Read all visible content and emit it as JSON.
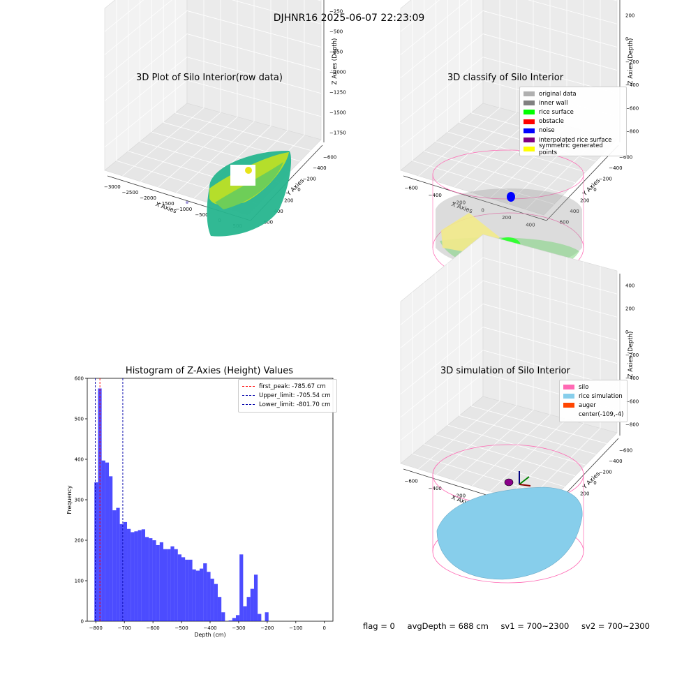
{
  "suptitle": "DJHNR16 2025-06-07 22:23:09",
  "panels": {
    "raw": {
      "title": "3D Plot of Silo Interior(row data)",
      "xlabel": "X Axies",
      "ylabel": "Y Axies",
      "zlabel": "Z Axies (Depth)",
      "xticks": [
        "−3000",
        "−2500",
        "−2000",
        "−1500",
        "−1000",
        "−500",
        "0",
        "500"
      ],
      "yticks": [
        "−600",
        "−400",
        "−200",
        "0",
        "200",
        "400",
        "600"
      ],
      "zticks": [
        "0",
        "−250",
        "−500",
        "−750",
        "−1000",
        "−1250",
        "−1500",
        "−1750"
      ]
    },
    "classify": {
      "title": "3D classify of Silo Interior",
      "xlabel": "X Axies",
      "ylabel": "Y Axies",
      "zlabel": "Z Axies (Depth)",
      "xticks": [
        "−600",
        "−400",
        "−200",
        "0",
        "200",
        "400"
      ],
      "yticks": [
        "−600",
        "−400",
        "−200",
        "0",
        "200",
        "400",
        "600"
      ],
      "zticks": [
        "400",
        "200",
        "0",
        "−200",
        "−400",
        "−600",
        "−800"
      ],
      "legend": [
        {
          "label": "original data",
          "color": "#b0b0b0"
        },
        {
          "label": "inner wall",
          "color": "#808080"
        },
        {
          "label": "rice surface",
          "color": "#00ff00"
        },
        {
          "label": "obstacle",
          "color": "#ff0000"
        },
        {
          "label": "noise",
          "color": "#0000ff"
        },
        {
          "label": "interpolated rice surface",
          "color": "#800080"
        },
        {
          "label": "symmetric generated points",
          "color": "#ffff00"
        }
      ]
    },
    "simulation": {
      "title": "3D simulation of Silo Interior",
      "xlabel": "X Axies",
      "ylabel": "Y Axies",
      "zlabel": "Z Axies (Depth)",
      "xticks": [
        "−600",
        "−400",
        "−200",
        "0",
        "200",
        "400"
      ],
      "yticks": [
        "−600",
        "−400",
        "−200",
        "0",
        "200",
        "400",
        "600"
      ],
      "zticks": [
        "400",
        "200",
        "0",
        "−200",
        "−400",
        "−600",
        "−800"
      ],
      "legend": [
        {
          "label": "silo",
          "color": "#ff69b4"
        },
        {
          "label": "rice simulation",
          "color": "#87ceeb"
        },
        {
          "label": "auger",
          "color": "#ff4500"
        },
        {
          "label": "center(-109,-4)",
          "color": ""
        }
      ]
    }
  },
  "chart_data": {
    "type": "bar",
    "title": "Histogram of Z-Axies (Height) Values",
    "xlabel": "Depth (cm)",
    "ylabel": "Frequency",
    "xlim": [
      -830,
      30
    ],
    "ylim": [
      0,
      600
    ],
    "xticks": [
      -800,
      -700,
      -600,
      -500,
      -400,
      -300,
      -200,
      -100,
      0
    ],
    "yticks": [
      0,
      100,
      200,
      300,
      400,
      500,
      600
    ],
    "bar_color": "#0000ff",
    "bins_start": -805,
    "bin_width": 12.7,
    "values": [
      343,
      575,
      397,
      392,
      358,
      274,
      280,
      240,
      245,
      228,
      220,
      222,
      225,
      227,
      208,
      205,
      200,
      188,
      195,
      178,
      178,
      185,
      178,
      165,
      158,
      152,
      152,
      128,
      125,
      130,
      143,
      122,
      105,
      92,
      60,
      22,
      0,
      2,
      8,
      15,
      165,
      37,
      60,
      80,
      115,
      18,
      0,
      22
    ],
    "lines": [
      {
        "label": "first_peak: -785.67 cm",
        "x": -785.67,
        "color": "#ff0000"
      },
      {
        "label": "Upper_limit: -705.54 cm",
        "x": -705.54,
        "color": "#0000aa"
      },
      {
        "label": "Lower_limit: -801.70 cm",
        "x": -801.7,
        "color": "#0000aa"
      }
    ]
  },
  "footer": {
    "flag": "flag = 0",
    "avg_depth": "avgDepth = 688 cm",
    "sv1": "sv1 = 700~2300",
    "sv2": "sv2 = 700~2300"
  }
}
